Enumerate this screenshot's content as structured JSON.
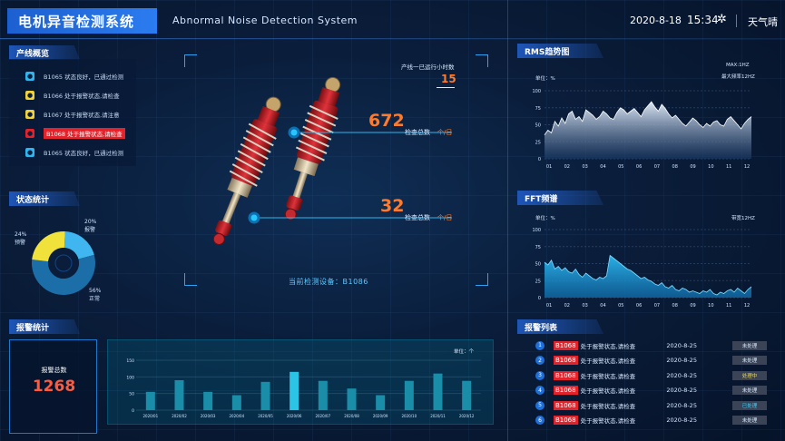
{
  "header": {
    "title": "电机异音检测系统",
    "subtitle": "Abnormal Noise  Detection System",
    "date": "2020-8-18",
    "time": "15:34",
    "weather": "天气晴",
    "icons": [
      "gear-icon"
    ]
  },
  "production": {
    "title": "产线概览",
    "items": [
      {
        "text": "B1065  状态良好，已通过检测",
        "status": "ok"
      },
      {
        "text": "B1066  处于报警状态,请检查",
        "status": "warn"
      },
      {
        "text": "B1067  处于报警状态,请注意",
        "status": "warn"
      },
      {
        "text": "B1068  处于报警状态,请检查",
        "status": "alert"
      },
      {
        "text": "B1065  状态良好，已通过检测",
        "status": "ok"
      }
    ]
  },
  "status_stats": {
    "title": "状态统计",
    "slices": [
      {
        "pct": "20%",
        "label": "报警",
        "value": 20,
        "color": "#3fb6f0"
      },
      {
        "pct": "56%",
        "label": "正常",
        "value": 56,
        "color": "#1c6ea8"
      },
      {
        "pct": "24%",
        "label": "预警",
        "value": 24,
        "color": "#f1e23b"
      }
    ]
  },
  "alarm_stats": {
    "title": "报警统计",
    "total_label": "报警总数",
    "total_value": "1268",
    "unit_label": "单位：个"
  },
  "center": {
    "runtime_label": "产线一已运行小时数",
    "runtime_value": "15",
    "count_a": "672",
    "count_b": "32",
    "count_label": "检查总数",
    "count_unit": "个/日",
    "current_device": "当前检测设备：B1086"
  },
  "rms": {
    "title": "RMS趋势图",
    "unit_label": "单位：%",
    "max_note": "MAX:1HZ",
    "max_freq_note": "最大频率12HZ"
  },
  "fft": {
    "title": "FFT频谱",
    "unit_label": "单位：%",
    "freq_note": "带宽12HZ"
  },
  "alarm_list": {
    "title": "报警列表",
    "rows": [
      {
        "num": "1",
        "code": "B1068",
        "desc": "处于报警状态,请检查",
        "date": "2020-8-25",
        "status": "未处理",
        "state": "pending"
      },
      {
        "num": "2",
        "code": "B1068",
        "desc": "处于报警状态,请检查",
        "date": "2020-8-25",
        "status": "未处理",
        "state": "pending"
      },
      {
        "num": "3",
        "code": "B1068",
        "desc": "处于报警状态,请检查",
        "date": "2020-8-25",
        "status": "处理中",
        "state": "processing"
      },
      {
        "num": "4",
        "code": "B1068",
        "desc": "处于报警状态,请检查",
        "date": "2020-8-25",
        "status": "未处理",
        "state": "pending"
      },
      {
        "num": "5",
        "code": "B1068",
        "desc": "处于报警状态,请检查",
        "date": "2020-8-25",
        "status": "已处理",
        "state": "done"
      },
      {
        "num": "6",
        "code": "B1068",
        "desc": "处于报警状态,请检查",
        "date": "2020-8-25",
        "status": "未处理",
        "state": "pending"
      }
    ]
  },
  "chart_data": [
    {
      "type": "area",
      "title": "RMS趋势图",
      "x_ticks": [
        "01",
        "02",
        "03",
        "04",
        "05",
        "06",
        "07",
        "08",
        "09",
        "10",
        "11",
        "12"
      ],
      "y_ticks": [
        "100",
        "75",
        "50",
        "25",
        "0"
      ],
      "ylim": [
        0,
        100
      ],
      "values": [
        35,
        42,
        38,
        55,
        48,
        60,
        52,
        66,
        70,
        58,
        62,
        55,
        72,
        68,
        64,
        58,
        62,
        70,
        66,
        60,
        58,
        68,
        75,
        72,
        66,
        70,
        74,
        68,
        62,
        72,
        78,
        84,
        76,
        70,
        80,
        74,
        66,
        60,
        64,
        58,
        52,
        48,
        54,
        60,
        56,
        50,
        46,
        52,
        48,
        54,
        56,
        50,
        48,
        58,
        62,
        56,
        50,
        44,
        52,
        58,
        62
      ]
    },
    {
      "type": "area",
      "title": "FFT频谱",
      "x_ticks": [
        "01",
        "02",
        "03",
        "04",
        "05",
        "06",
        "07",
        "08",
        "09",
        "10",
        "11",
        "12"
      ],
      "y_ticks": [
        "100",
        "75",
        "50",
        "25",
        "0"
      ],
      "ylim": [
        0,
        100
      ],
      "values": [
        52,
        48,
        55,
        42,
        46,
        40,
        44,
        38,
        36,
        42,
        34,
        30,
        36,
        32,
        28,
        26,
        30,
        28,
        32,
        62,
        58,
        54,
        50,
        46,
        42,
        40,
        36,
        32,
        28,
        30,
        26,
        24,
        20,
        18,
        22,
        16,
        14,
        18,
        12,
        10,
        14,
        12,
        8,
        10,
        8,
        6,
        10,
        8,
        12,
        6,
        4,
        8,
        6,
        10,
        12,
        8,
        14,
        10,
        6,
        12,
        16
      ]
    },
    {
      "type": "bar",
      "title": "报警统计",
      "categories": [
        "2020/01",
        "2020/02",
        "2020/03",
        "2020/04",
        "2020/05",
        "2020/06",
        "2020/07",
        "2020/08",
        "2020/09",
        "2020/10",
        "2020/11",
        "2020/12"
      ],
      "values": [
        55,
        90,
        55,
        45,
        85,
        115,
        88,
        65,
        45,
        88,
        110,
        88
      ],
      "y_ticks": [
        "150",
        "100",
        "50",
        "0"
      ],
      "ylim": [
        0,
        150
      ],
      "highlight_index": 5
    }
  ]
}
